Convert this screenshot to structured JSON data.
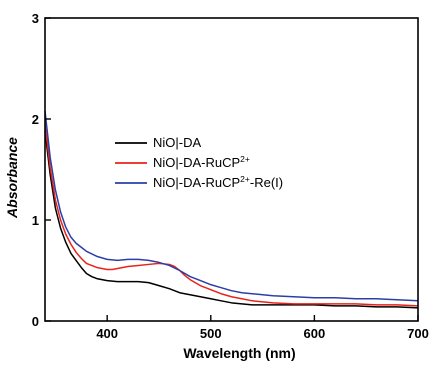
{
  "chart_data": {
    "type": "line",
    "title": "",
    "xlabel": "Wavelength (nm)",
    "ylabel": "Absorbance",
    "xlim": [
      340,
      700
    ],
    "ylim": [
      0,
      3
    ],
    "xticks": [
      400,
      500,
      600,
      700
    ],
    "yticks": [
      0,
      1,
      2,
      3
    ],
    "grid": false,
    "legend_position": "center-right",
    "series": [
      {
        "name": "NiO|-DA",
        "legend_base": "NiO|-DA",
        "legend_sup": "",
        "legend_suffix": "",
        "color": "#000000",
        "x": [
          340,
          345,
          350,
          355,
          360,
          365,
          370,
          375,
          380,
          385,
          390,
          395,
          400,
          410,
          420,
          430,
          440,
          450,
          460,
          470,
          480,
          490,
          500,
          510,
          520,
          530,
          540,
          560,
          580,
          600,
          620,
          640,
          660,
          680,
          700
        ],
        "y": [
          1.88,
          1.45,
          1.12,
          0.92,
          0.78,
          0.67,
          0.6,
          0.53,
          0.47,
          0.44,
          0.42,
          0.41,
          0.4,
          0.39,
          0.39,
          0.39,
          0.38,
          0.35,
          0.32,
          0.28,
          0.26,
          0.24,
          0.22,
          0.2,
          0.18,
          0.17,
          0.16,
          0.16,
          0.16,
          0.16,
          0.15,
          0.15,
          0.14,
          0.14,
          0.13
        ]
      },
      {
        "name": "NiO|-DA-RuCP2+",
        "legend_base": "NiO|-DA-RuCP",
        "legend_sup": "2+",
        "legend_suffix": "",
        "color": "#e8241a",
        "x": [
          340,
          345,
          350,
          355,
          360,
          365,
          370,
          375,
          380,
          385,
          390,
          395,
          400,
          405,
          410,
          420,
          430,
          440,
          450,
          460,
          465,
          470,
          475,
          480,
          490,
          500,
          510,
          520,
          530,
          540,
          560,
          580,
          600,
          620,
          640,
          660,
          680,
          700
        ],
        "y": [
          1.95,
          1.52,
          1.2,
          1.0,
          0.86,
          0.76,
          0.68,
          0.62,
          0.57,
          0.55,
          0.53,
          0.52,
          0.51,
          0.51,
          0.52,
          0.54,
          0.55,
          0.56,
          0.57,
          0.56,
          0.54,
          0.5,
          0.45,
          0.41,
          0.35,
          0.31,
          0.27,
          0.24,
          0.22,
          0.2,
          0.18,
          0.17,
          0.17,
          0.17,
          0.17,
          0.16,
          0.16,
          0.15
        ]
      },
      {
        "name": "NiO|-DA-RuCP2+-Re(I)",
        "legend_base": "NiO|-DA-RuCP",
        "legend_sup": "2+",
        "legend_suffix": "-Re(I)",
        "color": "#2b3fa8",
        "x": [
          340,
          345,
          350,
          355,
          360,
          365,
          370,
          375,
          380,
          390,
          400,
          410,
          420,
          430,
          440,
          450,
          460,
          470,
          480,
          490,
          500,
          510,
          520,
          530,
          540,
          560,
          580,
          600,
          620,
          640,
          660,
          680,
          700
        ],
        "y": [
          2.08,
          1.62,
          1.3,
          1.08,
          0.93,
          0.83,
          0.77,
          0.73,
          0.69,
          0.64,
          0.61,
          0.6,
          0.61,
          0.61,
          0.6,
          0.58,
          0.55,
          0.5,
          0.44,
          0.4,
          0.36,
          0.33,
          0.3,
          0.28,
          0.27,
          0.25,
          0.24,
          0.23,
          0.23,
          0.22,
          0.22,
          0.21,
          0.2
        ]
      }
    ]
  }
}
